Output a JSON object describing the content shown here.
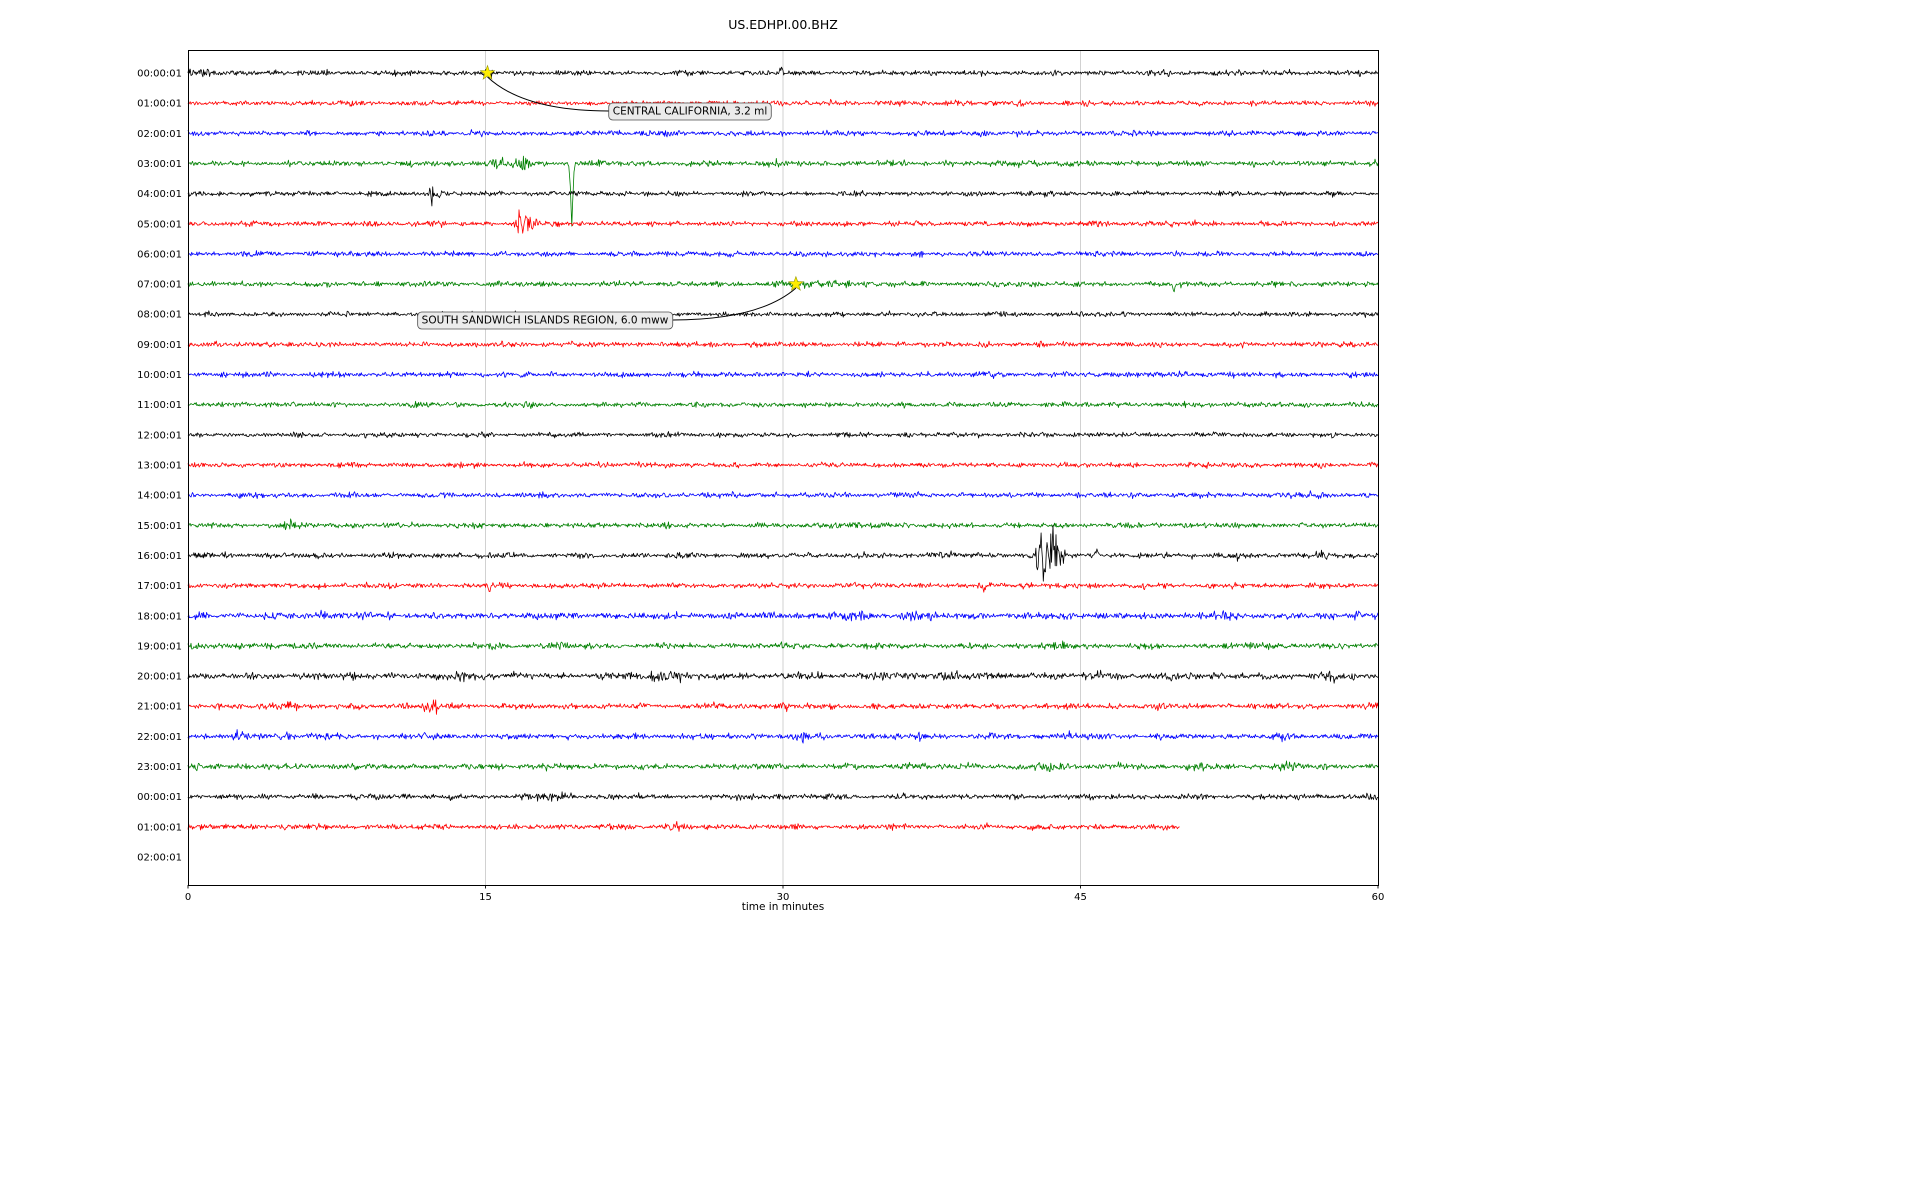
{
  "chart_data": {
    "type": "line",
    "subtype": "helicorder-seismogram",
    "title": "US.EDHPI.00.BHZ",
    "xlabel": "time in minutes",
    "xlim": [
      0,
      60
    ],
    "x_ticks": [
      0,
      15,
      30,
      45,
      60
    ],
    "grid": {
      "vertical": true,
      "color": "#cccccc"
    },
    "row_interval_minutes": 60,
    "color_cycle": [
      "#000000",
      "#ff0000",
      "#0000ff",
      "#008000"
    ],
    "rows": [
      {
        "label": "00:00:01",
        "color": "#000000",
        "end_minute": 60,
        "base_amp": 1.9,
        "bursts": [
          [
            0.4,
            0.5,
            3,
            0
          ],
          [
            15.1,
            0.25,
            3.5,
            0
          ],
          [
            29.9,
            0.06,
            5,
            1
          ]
        ]
      },
      {
        "label": "01:00:01",
        "color": "#ff0000",
        "end_minute": 60,
        "base_amp": 1.8,
        "bursts": [
          [
            8.3,
            0.1,
            2.5,
            0
          ],
          [
            38.9,
            0.2,
            2,
            0
          ]
        ]
      },
      {
        "label": "02:00:01",
        "color": "#0000ff",
        "end_minute": 60,
        "base_amp": 1.9,
        "bursts": [
          [
            12.2,
            0.6,
            2.5,
            0
          ],
          [
            40.0,
            0.3,
            2,
            0
          ]
        ]
      },
      {
        "label": "03:00:01",
        "color": "#008000",
        "end_minute": 60,
        "base_amp": 2.0,
        "bursts": [
          [
            15.6,
            0.5,
            4,
            0
          ],
          [
            16.8,
            0.4,
            5,
            0
          ],
          [
            19.35,
            0.06,
            70,
            -1
          ],
          [
            20.8,
            0.3,
            3,
            0
          ],
          [
            29.5,
            0.3,
            2.5,
            0
          ],
          [
            42.3,
            0.4,
            4,
            0
          ]
        ]
      },
      {
        "label": "04:00:01",
        "color": "#000000",
        "end_minute": 60,
        "base_amp": 1.8,
        "bursts": [
          [
            12.3,
            0.07,
            9,
            0
          ],
          [
            12.6,
            0.3,
            3,
            0
          ],
          [
            57.8,
            0.08,
            3,
            0
          ]
        ]
      },
      {
        "label": "05:00:01",
        "color": "#ff0000",
        "end_minute": 60,
        "base_amp": 1.9,
        "bursts": [
          [
            16.5,
            0.1,
            6,
            0
          ],
          [
            16.9,
            0.25,
            16,
            0
          ],
          [
            17.4,
            0.15,
            10,
            0
          ]
        ]
      },
      {
        "label": "06:00:01",
        "color": "#0000ff",
        "end_minute": 60,
        "base_amp": 1.9,
        "bursts": [
          [
            13.9,
            0.3,
            2.5,
            0
          ],
          [
            44.9,
            0.15,
            3,
            0
          ]
        ]
      },
      {
        "label": "07:00:01",
        "color": "#008000",
        "end_minute": 60,
        "base_amp": 1.9,
        "bursts": [
          [
            30.8,
            1.5,
            2.2,
            0
          ],
          [
            33,
            1,
            1.5,
            0
          ],
          [
            49.7,
            0.05,
            9,
            -1
          ]
        ]
      },
      {
        "label": "08:00:01",
        "color": "#000000",
        "end_minute": 60,
        "base_amp": 1.7,
        "bursts": [
          [
            1.0,
            0.4,
            2,
            0
          ]
        ]
      },
      {
        "label": "09:00:01",
        "color": "#ff0000",
        "end_minute": 60,
        "base_amp": 1.9,
        "bursts": [
          [
            3.2,
            0.2,
            2,
            0
          ],
          [
            26.5,
            0.2,
            2.5,
            0
          ],
          [
            37.6,
            0.15,
            2.5,
            0
          ]
        ]
      },
      {
        "label": "10:00:01",
        "color": "#0000ff",
        "end_minute": 60,
        "base_amp": 1.9,
        "bursts": [
          [
            47.5,
            0.3,
            2,
            0
          ]
        ]
      },
      {
        "label": "11:00:01",
        "color": "#008000",
        "end_minute": 60,
        "base_amp": 1.8,
        "bursts": [
          [
            11.5,
            0.3,
            2,
            0
          ]
        ]
      },
      {
        "label": "12:00:01",
        "color": "#000000",
        "end_minute": 60,
        "base_amp": 1.7,
        "bursts": []
      },
      {
        "label": "13:00:01",
        "color": "#ff0000",
        "end_minute": 60,
        "base_amp": 1.8,
        "bursts": [
          [
            21.0,
            0.3,
            2,
            0
          ]
        ]
      },
      {
        "label": "14:00:01",
        "color": "#0000ff",
        "end_minute": 60,
        "base_amp": 1.9,
        "bursts": [
          [
            56.5,
            0.8,
            2,
            0
          ]
        ]
      },
      {
        "label": "15:00:01",
        "color": "#008000",
        "end_minute": 60,
        "base_amp": 1.9,
        "bursts": [
          [
            5.3,
            0.3,
            4,
            0
          ],
          [
            33.5,
            0.5,
            2.5,
            0
          ],
          [
            36,
            0.3,
            2,
            0
          ]
        ]
      },
      {
        "label": "16:00:01",
        "color": "#000000",
        "end_minute": 60,
        "base_amp": 1.9,
        "bursts": [
          [
            38,
            0.4,
            3,
            0
          ],
          [
            43.2,
            0.35,
            22,
            0
          ],
          [
            43.6,
            0.2,
            30,
            0
          ],
          [
            44.0,
            0.15,
            14,
            0
          ],
          [
            45.8,
            0.06,
            13,
            0
          ],
          [
            50.5,
            0.2,
            3,
            0
          ],
          [
            52.9,
            0.07,
            7,
            0
          ],
          [
            57.2,
            0.25,
            5,
            0
          ]
        ]
      },
      {
        "label": "17:00:01",
        "color": "#ff0000",
        "end_minute": 60,
        "base_amp": 1.9,
        "bursts": [
          [
            10.3,
            0.2,
            3,
            0
          ],
          [
            15.2,
            0.06,
            7,
            -1
          ],
          [
            40.3,
            0.5,
            3.5,
            0
          ],
          [
            44.5,
            0.3,
            2.5,
            0
          ]
        ]
      },
      {
        "label": "18:00:01",
        "color": "#0000ff",
        "end_minute": 60,
        "base_amp": 2.4,
        "bursts": [
          [
            7,
            0.5,
            3,
            0
          ],
          [
            29.5,
            0.4,
            3,
            0
          ],
          [
            33.5,
            0.8,
            3.5,
            0
          ],
          [
            36.5,
            0.4,
            3.5,
            0
          ],
          [
            44,
            0.5,
            3,
            0
          ],
          [
            52.5,
            0.4,
            4,
            0
          ],
          [
            59,
            0.3,
            3,
            0
          ]
        ]
      },
      {
        "label": "19:00:01",
        "color": "#008000",
        "end_minute": 60,
        "base_amp": 2.1,
        "bursts": [
          [
            4,
            0.4,
            3,
            0
          ],
          [
            18.7,
            0.3,
            3,
            0
          ],
          [
            30.5,
            0.3,
            2.5,
            0
          ],
          [
            44,
            0.4,
            3,
            0
          ],
          [
            54,
            0.5,
            3,
            0
          ]
        ]
      },
      {
        "label": "20:00:01",
        "color": "#000000",
        "end_minute": 60,
        "base_amp": 2.4,
        "bursts": [
          [
            8.5,
            0.4,
            3,
            0
          ],
          [
            14,
            0.8,
            4,
            0
          ],
          [
            24,
            0.8,
            4,
            0
          ],
          [
            34.5,
            0.6,
            3,
            0
          ],
          [
            38.5,
            0.8,
            3.5,
            0
          ],
          [
            46,
            0.4,
            3,
            0
          ],
          [
            57.5,
            0.5,
            3.5,
            0
          ]
        ]
      },
      {
        "label": "21:00:01",
        "color": "#ff0000",
        "end_minute": 60,
        "base_amp": 2.1,
        "bursts": [
          [
            5,
            0.5,
            3.5,
            0
          ],
          [
            12.0,
            0.15,
            4,
            0
          ],
          [
            12.4,
            0.25,
            7,
            0
          ],
          [
            30,
            0.4,
            2.5,
            0
          ],
          [
            49,
            0.3,
            2.5,
            0
          ]
        ]
      },
      {
        "label": "22:00:01",
        "color": "#0000ff",
        "end_minute": 60,
        "base_amp": 2.1,
        "bursts": [
          [
            2.6,
            0.3,
            5,
            0
          ],
          [
            5,
            0.4,
            3,
            0
          ],
          [
            31,
            0.5,
            3.5,
            0
          ],
          [
            37,
            0.3,
            2.5,
            0
          ],
          [
            44.5,
            0.4,
            3,
            0
          ],
          [
            55,
            0.5,
            3,
            0
          ]
        ]
      },
      {
        "label": "23:00:01",
        "color": "#008000",
        "end_minute": 60,
        "base_amp": 2.2,
        "bursts": [
          [
            36.5,
            0.4,
            2.5,
            0
          ],
          [
            43.5,
            0.6,
            3.5,
            0
          ],
          [
            47,
            0.3,
            3,
            0
          ],
          [
            51,
            0.5,
            3.5,
            0
          ],
          [
            55.5,
            0.5,
            3,
            0
          ]
        ]
      },
      {
        "label": "00:00:01",
        "color": "#000000",
        "end_minute": 60,
        "base_amp": 1.9,
        "bursts": [
          [
            6.5,
            0.3,
            2.5,
            0
          ],
          [
            9.5,
            0.4,
            3,
            0
          ],
          [
            18.5,
            0.8,
            3.5,
            0
          ],
          [
            28.2,
            0.5,
            3,
            0
          ]
        ]
      },
      {
        "label": "01:00:01",
        "color": "#ff0000",
        "end_minute": 50,
        "base_amp": 2.0,
        "bursts": [
          [
            5.2,
            0.4,
            3,
            0
          ],
          [
            24.5,
            0.5,
            3,
            0
          ],
          [
            36,
            0.3,
            2.5,
            0
          ]
        ]
      },
      {
        "label": "02:00:01",
        "color": "#0000ff",
        "end_minute": 0,
        "base_amp": 0,
        "bursts": []
      }
    ],
    "events": [
      {
        "label": "CENTRAL CALIFORNIA, 3.2 ml",
        "row": 0,
        "minute": 15.1,
        "marker": "star",
        "marker_color": "#ffee00",
        "box_center": [
          690,
          111
        ],
        "connect_side": "left"
      },
      {
        "label": "SOUTH SANDWICH ISLANDS REGION, 6.0 mww",
        "row": 7,
        "minute": 30.65,
        "marker": "star",
        "marker_color": "#ffee00",
        "box_center": [
          545,
          320
        ],
        "connect_side": "right"
      }
    ]
  }
}
